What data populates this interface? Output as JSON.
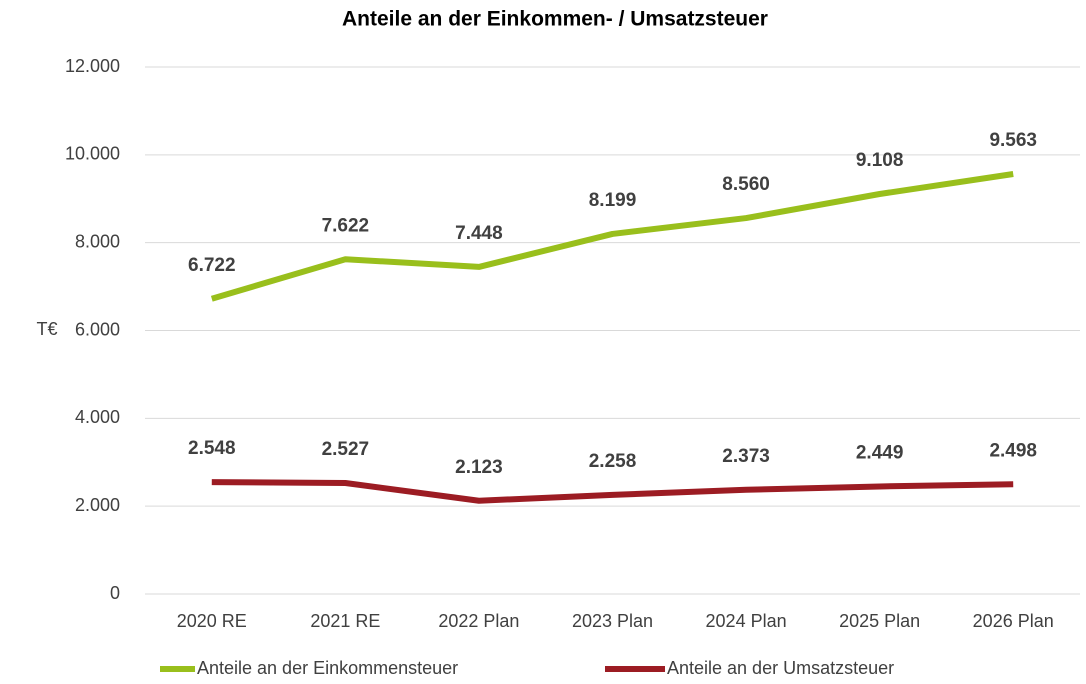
{
  "chart_data": {
    "type": "line",
    "title": "Anteile an der Einkommen- / Umsatzsteuer",
    "y_label": "T€",
    "categories": [
      "2020 RE",
      "2021 RE",
      "2022 Plan",
      "2023 Plan",
      "2024 Plan",
      "2025 Plan",
      "2026 Plan"
    ],
    "series": [
      {
        "name": "Anteile an der Einkommensteuer",
        "color": "#99bf1c",
        "values": [
          6722,
          7622,
          7448,
          8199,
          8560,
          9108,
          9563
        ],
        "value_labels": [
          "6.722",
          "7.622",
          "7.448",
          "8.199",
          "8.560",
          "9.108",
          "9.563"
        ]
      },
      {
        "name": "Anteile an der Umsatzsteuer",
        "color": "#9c1c23",
        "values": [
          2548,
          2527,
          2123,
          2258,
          2373,
          2449,
          2498
        ],
        "value_labels": [
          "2.548",
          "2.527",
          "2.123",
          "2.258",
          "2.373",
          "2.449",
          "2.498"
        ]
      }
    ],
    "ylim": [
      0,
      12000
    ],
    "yticks": [
      0,
      {
        "value": 2000,
        "label": "2.000"
      },
      {
        "value": 4000,
        "label": "4.000"
      },
      {
        "value": 6000,
        "label": "6.000"
      },
      {
        "value": 8000,
        "label": "8.000"
      },
      {
        "value": 10000,
        "label": "10.000"
      },
      {
        "value": 12000,
        "label": "12.000"
      }
    ],
    "grid": true,
    "legend": "bottom"
  }
}
